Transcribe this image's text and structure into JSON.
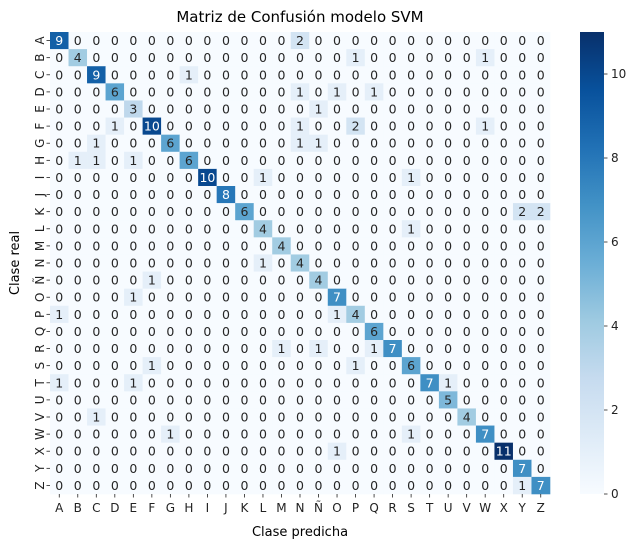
{
  "chart_data": {
    "type": "heatmap",
    "title": "Matriz de Confusión modelo SVM",
    "xlabel": "Clase predicha",
    "ylabel": "Clase real",
    "colormap": "Blues",
    "colorbar": {
      "min": 0,
      "max": 11,
      "ticks": [
        0,
        2,
        4,
        6,
        8,
        10
      ]
    },
    "categories": [
      "A",
      "B",
      "C",
      "D",
      "E",
      "F",
      "G",
      "H",
      "I",
      "J",
      "K",
      "L",
      "M",
      "N",
      "Ñ",
      "O",
      "P",
      "Q",
      "R",
      "S",
      "T",
      "U",
      "V",
      "W",
      "X",
      "Y",
      "Z"
    ],
    "matrix": [
      [
        9,
        0,
        0,
        0,
        0,
        0,
        0,
        0,
        0,
        0,
        0,
        0,
        0,
        2,
        0,
        0,
        0,
        0,
        0,
        0,
        0,
        0,
        0,
        0,
        0,
        0,
        0
      ],
      [
        0,
        4,
        0,
        0,
        0,
        0,
        0,
        0,
        0,
        0,
        0,
        0,
        0,
        0,
        0,
        0,
        1,
        0,
        0,
        0,
        0,
        0,
        0,
        1,
        0,
        0,
        0
      ],
      [
        0,
        0,
        9,
        0,
        0,
        0,
        0,
        1,
        0,
        0,
        0,
        0,
        0,
        0,
        0,
        0,
        0,
        0,
        0,
        0,
        0,
        0,
        0,
        0,
        0,
        0,
        0
      ],
      [
        0,
        0,
        0,
        6,
        0,
        0,
        0,
        0,
        0,
        0,
        0,
        0,
        0,
        1,
        0,
        1,
        0,
        1,
        0,
        0,
        0,
        0,
        0,
        0,
        0,
        0,
        0
      ],
      [
        0,
        0,
        0,
        0,
        3,
        0,
        0,
        0,
        0,
        0,
        0,
        0,
        0,
        0,
        1,
        0,
        0,
        0,
        0,
        0,
        0,
        0,
        0,
        0,
        0,
        0,
        0
      ],
      [
        0,
        0,
        0,
        1,
        0,
        10,
        0,
        0,
        0,
        0,
        0,
        0,
        0,
        1,
        0,
        0,
        2,
        0,
        0,
        0,
        0,
        0,
        0,
        1,
        0,
        0,
        0
      ],
      [
        0,
        0,
        1,
        0,
        0,
        0,
        6,
        0,
        0,
        0,
        0,
        0,
        0,
        1,
        1,
        0,
        0,
        0,
        0,
        0,
        0,
        0,
        0,
        0,
        0,
        0,
        0
      ],
      [
        0,
        1,
        1,
        0,
        1,
        0,
        0,
        6,
        0,
        0,
        0,
        0,
        0,
        0,
        0,
        0,
        0,
        0,
        0,
        0,
        0,
        0,
        0,
        0,
        0,
        0,
        0
      ],
      [
        0,
        0,
        0,
        0,
        0,
        0,
        0,
        0,
        10,
        0,
        0,
        1,
        0,
        0,
        0,
        0,
        0,
        0,
        0,
        1,
        0,
        0,
        0,
        0,
        0,
        0,
        0
      ],
      [
        0,
        0,
        0,
        0,
        0,
        0,
        0,
        0,
        0,
        8,
        0,
        0,
        0,
        0,
        0,
        0,
        0,
        0,
        0,
        0,
        0,
        0,
        0,
        0,
        0,
        0,
        0
      ],
      [
        0,
        0,
        0,
        0,
        0,
        0,
        0,
        0,
        0,
        0,
        6,
        0,
        0,
        0,
        0,
        0,
        0,
        0,
        0,
        0,
        0,
        0,
        0,
        0,
        0,
        2,
        2
      ],
      [
        0,
        0,
        0,
        0,
        0,
        0,
        0,
        0,
        0,
        0,
        0,
        4,
        0,
        0,
        0,
        0,
        0,
        0,
        0,
        1,
        0,
        0,
        0,
        0,
        0,
        0,
        0
      ],
      [
        0,
        0,
        0,
        0,
        0,
        0,
        0,
        0,
        0,
        0,
        0,
        0,
        4,
        0,
        0,
        0,
        0,
        0,
        0,
        0,
        0,
        0,
        0,
        0,
        0,
        0,
        0
      ],
      [
        0,
        0,
        0,
        0,
        0,
        0,
        0,
        0,
        0,
        0,
        0,
        1,
        0,
        4,
        0,
        0,
        0,
        0,
        0,
        0,
        0,
        0,
        0,
        0,
        0,
        0,
        0
      ],
      [
        0,
        0,
        0,
        0,
        0,
        1,
        0,
        0,
        0,
        0,
        0,
        0,
        0,
        0,
        4,
        0,
        0,
        0,
        0,
        0,
        0,
        0,
        0,
        0,
        0,
        0,
        0
      ],
      [
        0,
        0,
        0,
        0,
        1,
        0,
        0,
        0,
        0,
        0,
        0,
        0,
        0,
        0,
        0,
        7,
        0,
        0,
        0,
        0,
        0,
        0,
        0,
        0,
        0,
        0,
        0
      ],
      [
        1,
        0,
        0,
        0,
        0,
        0,
        0,
        0,
        0,
        0,
        0,
        0,
        0,
        0,
        0,
        1,
        4,
        0,
        0,
        0,
        0,
        0,
        0,
        0,
        0,
        0,
        0
      ],
      [
        0,
        0,
        0,
        0,
        0,
        0,
        0,
        0,
        0,
        0,
        0,
        0,
        0,
        0,
        0,
        0,
        0,
        6,
        0,
        0,
        0,
        0,
        0,
        0,
        0,
        0,
        0
      ],
      [
        0,
        0,
        0,
        0,
        0,
        0,
        0,
        0,
        0,
        0,
        0,
        0,
        1,
        0,
        1,
        0,
        0,
        1,
        7,
        0,
        0,
        0,
        0,
        0,
        0,
        0,
        0
      ],
      [
        0,
        0,
        0,
        0,
        0,
        1,
        0,
        0,
        0,
        0,
        0,
        0,
        0,
        0,
        0,
        0,
        1,
        0,
        0,
        6,
        0,
        0,
        0,
        0,
        0,
        0,
        0
      ],
      [
        1,
        0,
        0,
        0,
        1,
        0,
        0,
        0,
        0,
        0,
        0,
        0,
        0,
        0,
        0,
        0,
        0,
        0,
        0,
        0,
        7,
        1,
        0,
        0,
        0,
        0,
        0
      ],
      [
        0,
        0,
        0,
        0,
        0,
        0,
        0,
        0,
        0,
        0,
        0,
        0,
        0,
        0,
        0,
        0,
        0,
        0,
        0,
        0,
        0,
        5,
        0,
        0,
        0,
        0,
        0
      ],
      [
        0,
        0,
        1,
        0,
        0,
        0,
        0,
        0,
        0,
        0,
        0,
        0,
        0,
        0,
        0,
        0,
        0,
        0,
        0,
        0,
        0,
        0,
        4,
        0,
        0,
        0,
        0
      ],
      [
        0,
        0,
        0,
        0,
        0,
        0,
        1,
        0,
        0,
        0,
        0,
        0,
        0,
        0,
        0,
        0,
        0,
        0,
        0,
        1,
        0,
        0,
        0,
        7,
        0,
        0,
        0
      ],
      [
        0,
        0,
        0,
        0,
        0,
        0,
        0,
        0,
        0,
        0,
        0,
        0,
        0,
        0,
        0,
        1,
        0,
        0,
        0,
        0,
        0,
        0,
        0,
        0,
        11,
        0,
        0
      ],
      [
        0,
        0,
        0,
        0,
        0,
        0,
        0,
        0,
        0,
        0,
        0,
        0,
        0,
        0,
        0,
        0,
        0,
        0,
        0,
        0,
        0,
        0,
        0,
        0,
        0,
        7,
        0
      ],
      [
        0,
        0,
        0,
        0,
        0,
        0,
        0,
        0,
        0,
        0,
        0,
        0,
        0,
        0,
        0,
        0,
        0,
        0,
        0,
        0,
        0,
        0,
        0,
        0,
        0,
        1,
        7
      ]
    ]
  }
}
